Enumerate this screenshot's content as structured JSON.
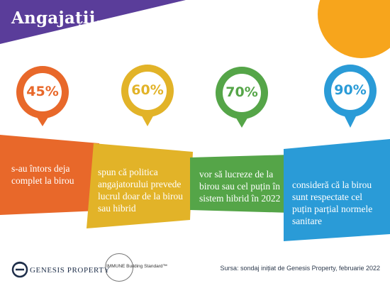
{
  "title": "Angajații...",
  "stats": [
    {
      "percent": "45%",
      "text": "s-au întors deja complet la birou",
      "color": "#e8682a"
    },
    {
      "percent": "60%",
      "text": "spun că politica angajatorului prevede lucrul doar de la birou sau hibrid",
      "color": "#e2b328"
    },
    {
      "percent": "70%",
      "text": "vor să lucreze de la birou sau cel puțin în sistem hibrid în 2022",
      "color": "#55a548"
    },
    {
      "percent": "90%",
      "text": "consideră că la birou sunt respectate cel puțin parțial normele sanitare",
      "color": "#2a9bd7"
    }
  ],
  "colors": {
    "purple": "#5a3d9a",
    "orange_circle": "#f7a51c"
  },
  "footer": {
    "logo_name": "GENESIS PROPERTY",
    "immune_label": "IMMUNE Building Standard™",
    "source": "Sursa: sondaj inițiat de Genesis Property, februarie 2022"
  }
}
